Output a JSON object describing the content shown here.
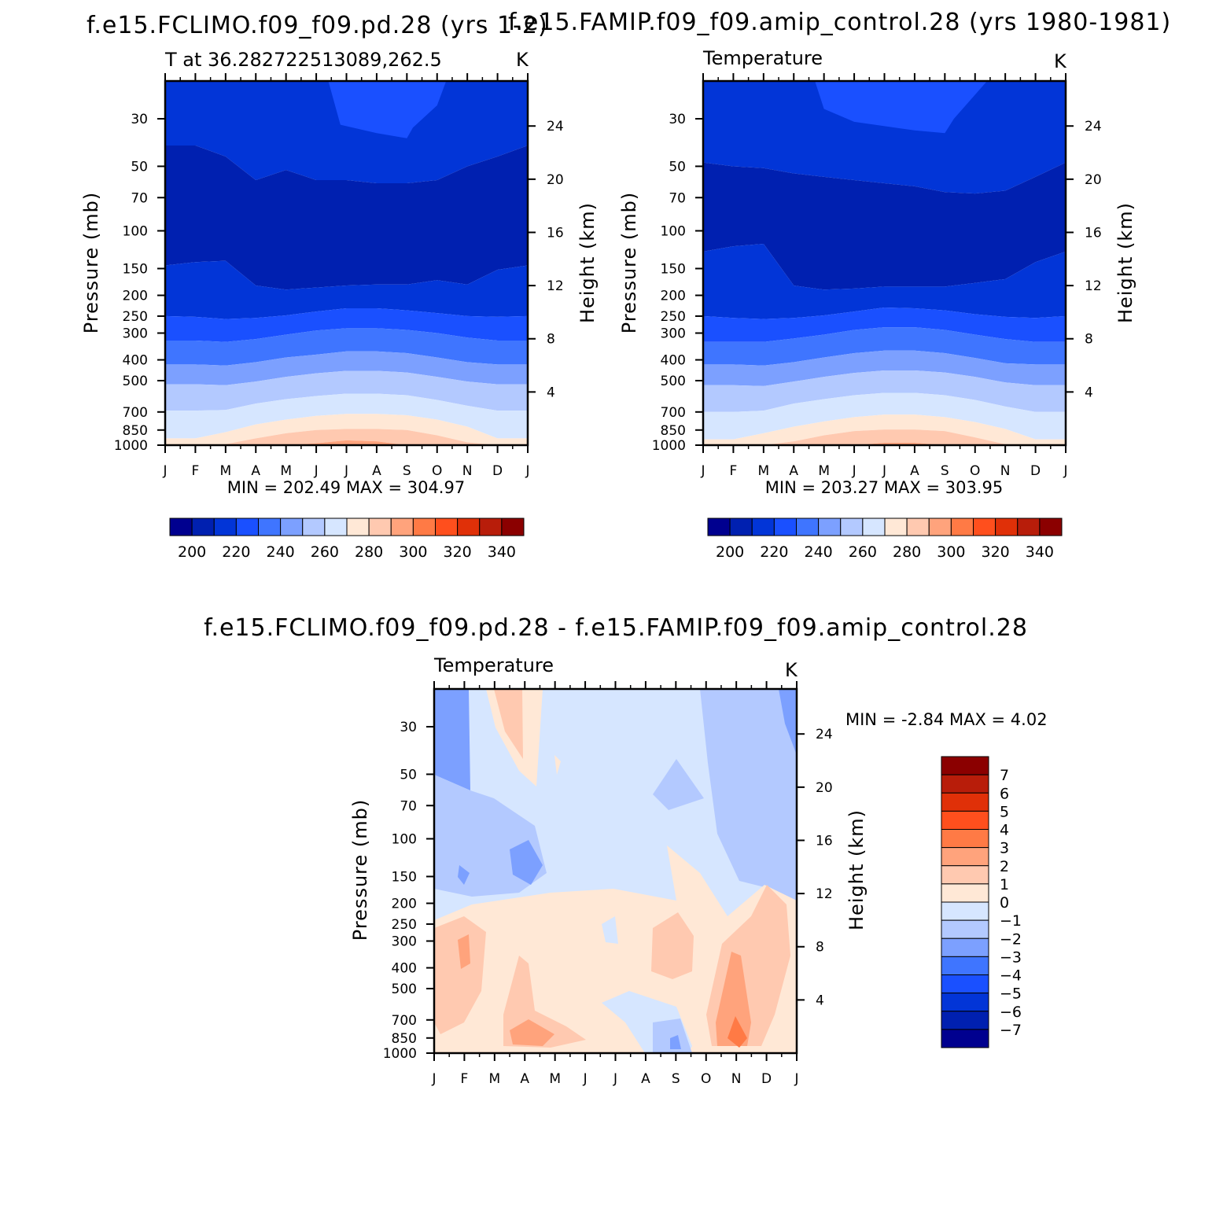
{
  "panels": [
    {
      "title": "f.e15.FCLIMO.f09_f09.pd.28 (yrs 1-2)",
      "subtitle": "T at 36.282722513089,262.5",
      "units": "K",
      "ylabel": "Pressure (mb)",
      "ylabel_right": "Height (km)",
      "minmax": "MIN = 202.49 MAX = 304.97",
      "colorbar_labels": [
        "200",
        "220",
        "240",
        "260",
        "280",
        "300",
        "320",
        "340"
      ]
    },
    {
      "title": "f.e15.FAMIP.f09_f09.amip_control.28 (yrs 1980-1981)",
      "subtitle": "Temperature",
      "units": "K",
      "ylabel": "Pressure (mb)",
      "ylabel_right": "Height (km)",
      "minmax": "MIN = 203.27 MAX = 303.95",
      "colorbar_labels": [
        "200",
        "220",
        "240",
        "260",
        "280",
        "300",
        "320",
        "340"
      ]
    },
    {
      "title": "f.e15.FCLIMO.f09_f09.pd.28 - f.e15.FAMIP.f09_f09.amip_control.28",
      "subtitle": "Temperature",
      "units": "K",
      "ylabel": "Pressure (mb)",
      "ylabel_right": "Height (km)",
      "minmax": "MIN = -2.84 MAX = 4.02",
      "colorbar_labels": [
        "7",
        "6",
        "5",
        "4",
        "3",
        "2",
        "1",
        "0",
        "-1",
        "-2",
        "-3",
        "-4",
        "-5",
        "-6",
        "-7"
      ]
    }
  ],
  "axes": {
    "months": [
      "J",
      "F",
      "M",
      "A",
      "M",
      "J",
      "J",
      "A",
      "S",
      "O",
      "N",
      "D",
      "J"
    ],
    "pressure_ticks": [
      "30",
      "50",
      "70",
      "100",
      "150",
      "200",
      "250",
      "300",
      "400",
      "500",
      "700",
      "850",
      "1000"
    ],
    "height_ticks": [
      "24",
      "20",
      "16",
      "12",
      "8",
      "4"
    ]
  },
  "chart_data": [
    {
      "type": "heatmap",
      "title": "f.e15.FCLIMO.f09_f09.pd.28 (yrs 1-2)",
      "variable": "T at 36.282722513089,262.5",
      "x": [
        "J",
        "F",
        "M",
        "A",
        "M",
        "J",
        "J",
        "A",
        "S",
        "O",
        "N",
        "D",
        "J"
      ],
      "ylabel": "Pressure (mb)",
      "y2label": "Height (km)",
      "ylim": [
        1000,
        20
      ],
      "levels": [
        200,
        210,
        220,
        230,
        240,
        250,
        260,
        270,
        280,
        290,
        300
      ],
      "boundaries_mb": [
        [
          40,
          40,
          45,
          58,
          52,
          58,
          58,
          60,
          60,
          58,
          50,
          45,
          40
        ],
        [
          145,
          140,
          138,
          180,
          188,
          184,
          180,
          178,
          178,
          170,
          178,
          152,
          145
        ],
        [
          250,
          252,
          258,
          255,
          248,
          238,
          230,
          230,
          235,
          242,
          250,
          252,
          250
        ],
        [
          325,
          325,
          330,
          320,
          305,
          292,
          285,
          285,
          290,
          300,
          315,
          325,
          325
        ],
        [
          420,
          420,
          425,
          410,
          390,
          378,
          365,
          365,
          372,
          390,
          410,
          420,
          420
        ],
        [
          520,
          520,
          525,
          505,
          480,
          462,
          450,
          450,
          458,
          480,
          505,
          520,
          520
        ],
        [
          690,
          690,
          685,
          640,
          610,
          590,
          575,
          575,
          585,
          615,
          655,
          690,
          690
        ],
        [
          930,
          930,
          870,
          800,
          760,
          730,
          715,
          715,
          725,
          760,
          820,
          930,
          930
        ],
        [
          1000,
          1000,
          990,
          930,
          880,
          850,
          840,
          840,
          850,
          900,
          970,
          1000,
          1000
        ],
        [
          1000,
          1000,
          1000,
          1000,
          1000,
          980,
          950,
          960,
          1000,
          1000,
          1000,
          1000,
          1000
        ]
      ],
      "min": 202.49,
      "max": 304.97
    },
    {
      "type": "heatmap",
      "title": "f.e15.FAMIP.f09_f09.amip_control.28 (yrs 1980-1981)",
      "variable": "Temperature",
      "x": [
        "J",
        "F",
        "M",
        "A",
        "M",
        "J",
        "J",
        "A",
        "S",
        "O",
        "N",
        "D",
        "J"
      ],
      "ylabel": "Pressure (mb)",
      "y2label": "Height (km)",
      "ylim": [
        1000,
        20
      ],
      "levels": [
        200,
        210,
        220,
        230,
        240,
        250,
        260,
        270,
        280,
        290,
        300
      ],
      "boundaries_mb": [
        [
          48,
          50,
          51,
          54,
          56,
          58,
          60,
          62,
          66,
          67,
          65,
          56,
          48
        ],
        [
          125,
          118,
          115,
          180,
          188,
          186,
          182,
          182,
          182,
          175,
          168,
          140,
          125
        ],
        [
          250,
          255,
          258,
          255,
          248,
          238,
          228,
          230,
          235,
          245,
          252,
          255,
          250
        ],
        [
          330,
          330,
          330,
          318,
          305,
          290,
          282,
          282,
          290,
          305,
          320,
          330,
          330
        ],
        [
          420,
          420,
          425,
          410,
          390,
          372,
          362,
          362,
          372,
          392,
          415,
          420,
          420
        ],
        [
          525,
          525,
          530,
          505,
          480,
          460,
          448,
          448,
          458,
          480,
          510,
          525,
          525
        ],
        [
          700,
          700,
          690,
          640,
          610,
          585,
          570,
          570,
          585,
          615,
          660,
          700,
          700
        ],
        [
          940,
          940,
          880,
          820,
          775,
          740,
          720,
          720,
          740,
          780,
          840,
          940,
          940
        ],
        [
          1000,
          1000,
          1000,
          960,
          900,
          860,
          845,
          845,
          860,
          920,
          990,
          1000,
          1000
        ],
        [
          1000,
          1000,
          1000,
          1000,
          1000,
          1000,
          975,
          975,
          1000,
          1000,
          1000,
          1000,
          1000
        ]
      ],
      "min": 203.27,
      "max": 303.95
    },
    {
      "type": "heatmap",
      "title": "f.e15.FCLIMO.f09_f09.pd.28 - f.e15.FAMIP.f09_f09.amip_control.28",
      "variable": "Temperature",
      "x": [
        "J",
        "F",
        "M",
        "A",
        "M",
        "J",
        "J",
        "A",
        "S",
        "O",
        "N",
        "D",
        "J"
      ],
      "ylabel": "Pressure (mb)",
      "y2label": "Height (km)",
      "ylim": [
        1000,
        20
      ],
      "levels": [
        -7,
        -6,
        -5,
        -4,
        -3,
        -2,
        -1,
        0,
        1,
        2,
        3,
        4,
        5,
        6,
        7
      ],
      "min": -2.84,
      "max": 4.02
    }
  ],
  "colors": {
    "temp_scale": [
      "#00008f",
      "#0020b0",
      "#0235d7",
      "#1a50ff",
      "#3f75ff",
      "#7ca0ff",
      "#b3c9ff",
      "#d6e6ff",
      "#ffe8d6",
      "#ffc9b0",
      "#ffa37c",
      "#ff7a45",
      "#ff4f1d",
      "#e03008",
      "#b81d0a",
      "#8b0000"
    ],
    "diff_scale": [
      "#8b0000",
      "#b81d0a",
      "#e03008",
      "#ff4f1d",
      "#ff7a45",
      "#ffa37c",
      "#ffc9b0",
      "#ffe8d6",
      "#d6e6ff",
      "#b3c9ff",
      "#7ca0ff",
      "#3f75ff",
      "#1a50ff",
      "#0235d7",
      "#0020b0",
      "#00008f"
    ]
  }
}
